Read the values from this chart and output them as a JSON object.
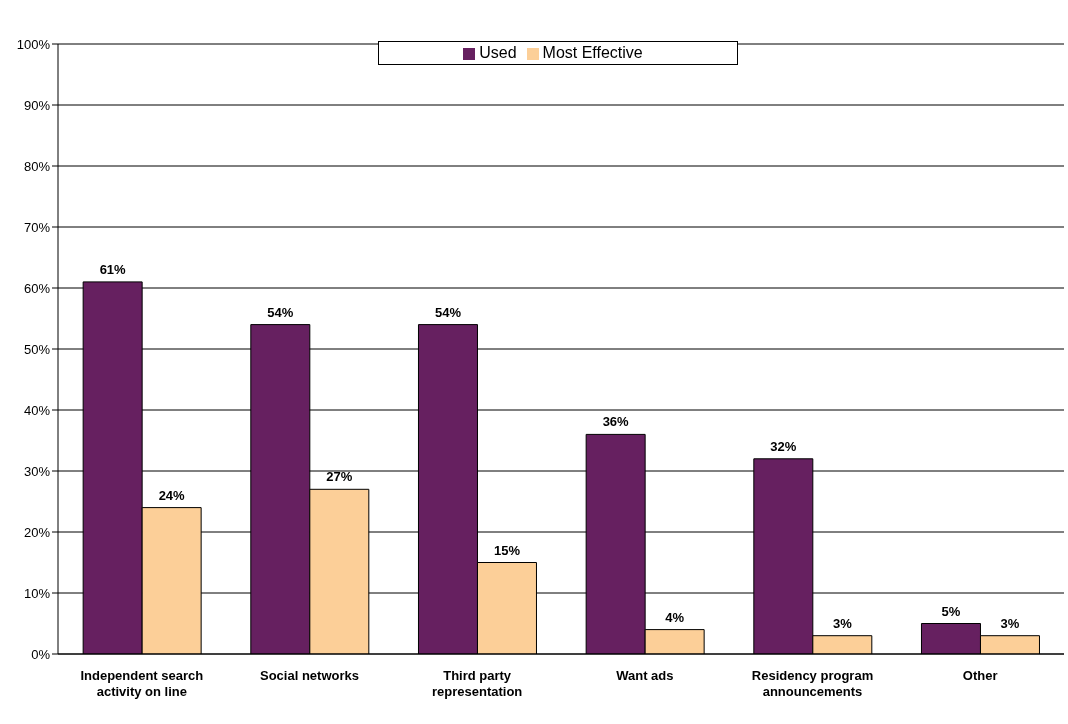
{
  "chart_data": {
    "type": "bar",
    "categories": [
      "Independent search activity on line",
      "Social networks",
      "Third party representation",
      "Want ads",
      "Residency program announcements",
      "Other"
    ],
    "series": [
      {
        "name": "Used",
        "color": "#662060",
        "values": [
          61,
          54,
          54,
          36,
          32,
          5
        ],
        "value_labels": [
          "61%",
          "54%",
          "54%",
          "36%",
          "32%",
          "5%"
        ]
      },
      {
        "name": "Most Effective",
        "color": "#fccf98",
        "values": [
          24,
          27,
          15,
          4,
          3,
          3
        ],
        "value_labels": [
          "24%",
          "27%",
          "15%",
          "4%",
          "3%",
          "3%"
        ]
      }
    ],
    "ylim": [
      0,
      100
    ],
    "yticks": [
      {
        "value": 0,
        "label": "0%"
      },
      {
        "value": 10,
        "label": "10%"
      },
      {
        "value": 20,
        "label": "20%"
      },
      {
        "value": 30,
        "label": "30%"
      },
      {
        "value": 40,
        "label": "40%"
      },
      {
        "value": 50,
        "label": "50%"
      },
      {
        "value": 60,
        "label": "60%"
      },
      {
        "value": 70,
        "label": "70%"
      },
      {
        "value": 80,
        "label": "80%"
      },
      {
        "value": 90,
        "label": "90%"
      },
      {
        "value": 100,
        "label": "100%"
      }
    ],
    "grid": "y",
    "legend": "top"
  }
}
